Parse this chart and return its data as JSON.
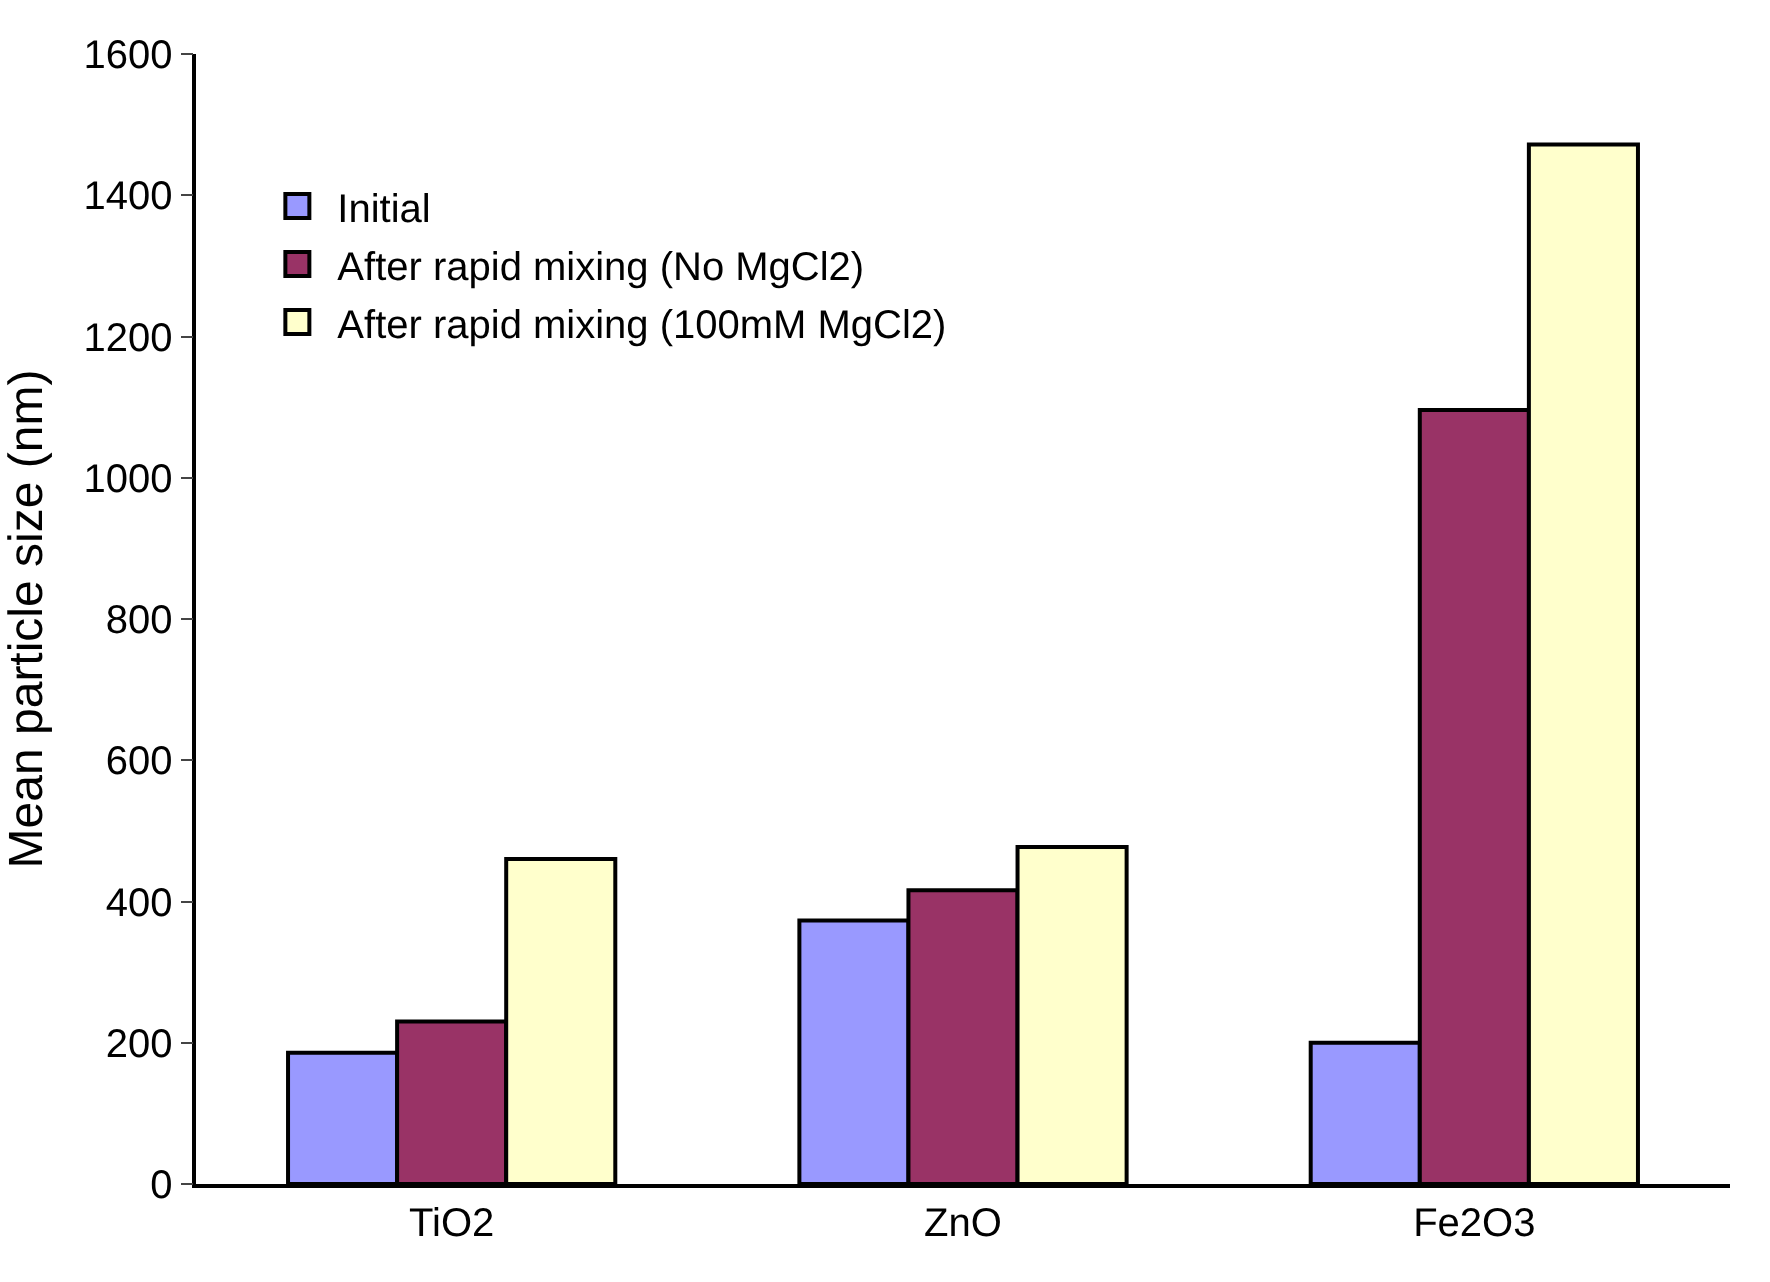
{
  "chart_data": {
    "type": "bar",
    "ylabel": "Mean particle size (nm)",
    "categories": [
      "TiO2",
      "ZnO",
      "Fe2O3"
    ],
    "series": [
      {
        "name": "Initial",
        "color": "#9999ff",
        "values": [
          186,
          373,
          200
        ]
      },
      {
        "name": "After rapid mixing (No MgCl2)",
        "color": "#993366",
        "values": [
          230,
          416,
          1096
        ]
      },
      {
        "name": "After rapid mixing (100mM MgCl2)",
        "color": "#ffffcc",
        "values": [
          460,
          477,
          1472
        ]
      }
    ],
    "ylim": [
      0,
      1600
    ],
    "yticks": [
      0,
      200,
      400,
      600,
      800,
      1000,
      1200,
      1400,
      1600
    ],
    "grid": false,
    "legend": "top left"
  }
}
